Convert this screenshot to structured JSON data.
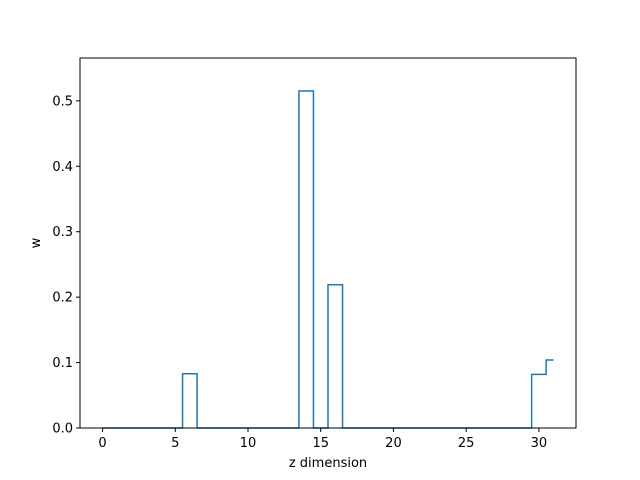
{
  "chart_data": {
    "type": "line",
    "drawstyle": "steps-mid",
    "title": "",
    "xlabel": "z dimension",
    "ylabel": "w",
    "xlim": [
      -1.55,
      32.55
    ],
    "ylim": [
      0,
      0.5655
    ],
    "xticks": [
      0,
      5,
      10,
      15,
      20,
      25,
      30
    ],
    "xtick_labels": [
      "0",
      "5",
      "10",
      "15",
      "20",
      "25",
      "30"
    ],
    "yticks": [
      0.0,
      0.1,
      0.2,
      0.3,
      0.4,
      0.5
    ],
    "ytick_labels": [
      "0.0",
      "0.1",
      "0.2",
      "0.3",
      "0.4",
      "0.5"
    ],
    "grid": false,
    "legend": "none",
    "series_color": "#1f77b4",
    "series": [
      {
        "x": [
          0,
          1,
          2,
          3,
          4,
          5,
          6,
          7,
          8,
          9,
          10,
          11,
          12,
          13,
          14,
          15,
          16,
          17,
          18,
          19,
          20,
          21,
          22,
          23,
          24,
          25,
          26,
          27,
          28,
          29,
          30,
          31
        ],
        "values": [
          0,
          0,
          0,
          0,
          0,
          0,
          0.083,
          0,
          0,
          0,
          0,
          0,
          0,
          0,
          0.515,
          0,
          0.219,
          0,
          0,
          0,
          0,
          0,
          0,
          0,
          0,
          0,
          0,
          0,
          0,
          0,
          0.082,
          0.104
        ]
      }
    ]
  }
}
